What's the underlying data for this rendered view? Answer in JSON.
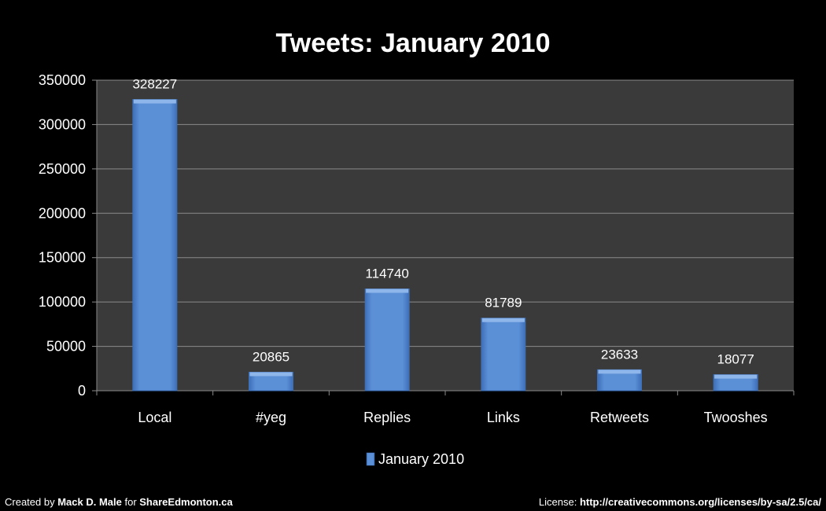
{
  "chart_data": {
    "type": "bar",
    "title": "Tweets: January 2010",
    "categories": [
      "Local",
      "#yeg",
      "Replies",
      "Links",
      "Retweets",
      "Twooshes"
    ],
    "series": [
      {
        "name": "January 2010",
        "values": [
          328227,
          20865,
          114740,
          81789,
          23633,
          18077
        ],
        "color": "#5b8fd6"
      }
    ],
    "data_labels": [
      "328227",
      "20865",
      "114740",
      "81789",
      "23633",
      "18077"
    ],
    "ylim": [
      0,
      350000
    ],
    "yticks": [
      0,
      50000,
      100000,
      150000,
      200000,
      250000,
      300000,
      350000
    ],
    "ytick_labels": [
      "0",
      "50000",
      "100000",
      "150000",
      "200000",
      "250000",
      "300000",
      "350000"
    ],
    "xlabel": "",
    "ylabel": "",
    "grid": true,
    "legend_position": "bottom"
  },
  "colors": {
    "page_background": "#000000",
    "plot_background": "#3a3a3a",
    "gridline": "#8a8a8a",
    "bar_fill": "#5b8fd6",
    "bar_top": "#8fb6ea",
    "bar_edge": "#3d6fb8",
    "text": "#ffffff"
  },
  "footer": {
    "left_prefix": "Created by ",
    "left_author": "Mack D. Male",
    "left_mid": " for ",
    "left_site": "ShareEdmonton.ca",
    "right_prefix": "License: ",
    "right_url": "http://creativecommons.org/licenses/by-sa/2.5/ca/"
  }
}
